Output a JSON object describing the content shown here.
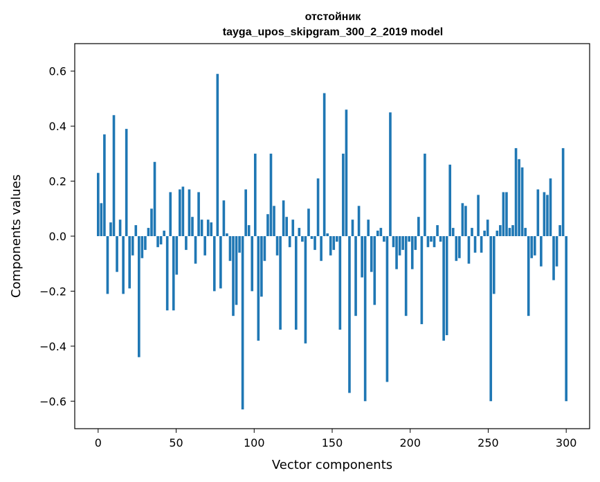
{
  "chart_data": {
    "type": "bar",
    "title_line1": "отстойник",
    "title_line2": "tayga_upos_skipgram_300_2_2019 model",
    "xlabel": "Vector components",
    "ylabel": "Components values",
    "xlim": [
      -15,
      315
    ],
    "ylim": [
      -0.7,
      0.7
    ],
    "xticks": [
      0,
      50,
      100,
      150,
      200,
      250,
      300
    ],
    "xtick_labels": [
      "0",
      "50",
      "100",
      "150",
      "200",
      "250",
      "300"
    ],
    "yticks": [
      -0.6,
      -0.4,
      -0.2,
      0.0,
      0.2,
      0.4,
      0.6
    ],
    "ytick_labels": [
      "−0.6",
      "−0.4",
      "−0.2",
      "0.0",
      "0.2",
      "0.4",
      "0.6"
    ],
    "grid": false,
    "bar_color": "#1f77b4",
    "values": [
      0.23,
      0.12,
      0.37,
      -0.21,
      0.05,
      0.44,
      -0.13,
      0.06,
      -0.21,
      0.39,
      -0.19,
      -0.07,
      0.04,
      -0.44,
      -0.08,
      -0.05,
      0.03,
      0.1,
      0.27,
      -0.04,
      -0.03,
      0.02,
      -0.27,
      0.16,
      -0.27,
      -0.14,
      0.17,
      0.18,
      -0.05,
      0.17,
      0.07,
      -0.1,
      0.16,
      0.06,
      -0.07,
      0.06,
      0.05,
      -0.2,
      0.59,
      -0.19,
      0.13,
      0.01,
      -0.09,
      -0.29,
      -0.25,
      -0.06,
      -0.63,
      0.17,
      0.04,
      -0.2,
      0.3,
      -0.38,
      -0.22,
      -0.09,
      0.08,
      0.3,
      0.11,
      -0.07,
      -0.34,
      0.13,
      0.07,
      -0.04,
      0.06,
      -0.34,
      0.03,
      -0.02,
      -0.39,
      0.1,
      -0.01,
      -0.05,
      0.21,
      -0.09,
      0.52,
      0.01,
      -0.07,
      -0.05,
      -0.02,
      -0.34,
      0.3,
      0.46,
      -0.57,
      0.06,
      -0.29,
      0.11,
      -0.15,
      -0.6,
      0.06,
      -0.13,
      -0.25,
      0.02,
      0.03,
      -0.02,
      -0.53,
      0.45,
      -0.04,
      -0.12,
      -0.07,
      -0.05,
      -0.29,
      -0.02,
      -0.12,
      -0.05,
      0.07,
      -0.32,
      0.3,
      -0.04,
      -0.02,
      -0.04,
      0.04,
      -0.02,
      -0.38,
      -0.36,
      0.26,
      0.03,
      -0.09,
      -0.08,
      0.12,
      0.11,
      -0.1,
      0.03,
      -0.06,
      0.15,
      -0.06,
      0.02,
      0.06,
      -0.6,
      -0.21,
      0.02,
      0.04,
      0.16,
      0.16,
      0.03,
      0.04,
      0.32,
      0.28,
      0.25,
      0.03,
      -0.29,
      -0.08,
      -0.07,
      0.17,
      -0.11,
      0.16,
      0.15,
      0.21,
      -0.16,
      -0.11,
      0.04,
      0.32,
      -0.6
    ]
  }
}
